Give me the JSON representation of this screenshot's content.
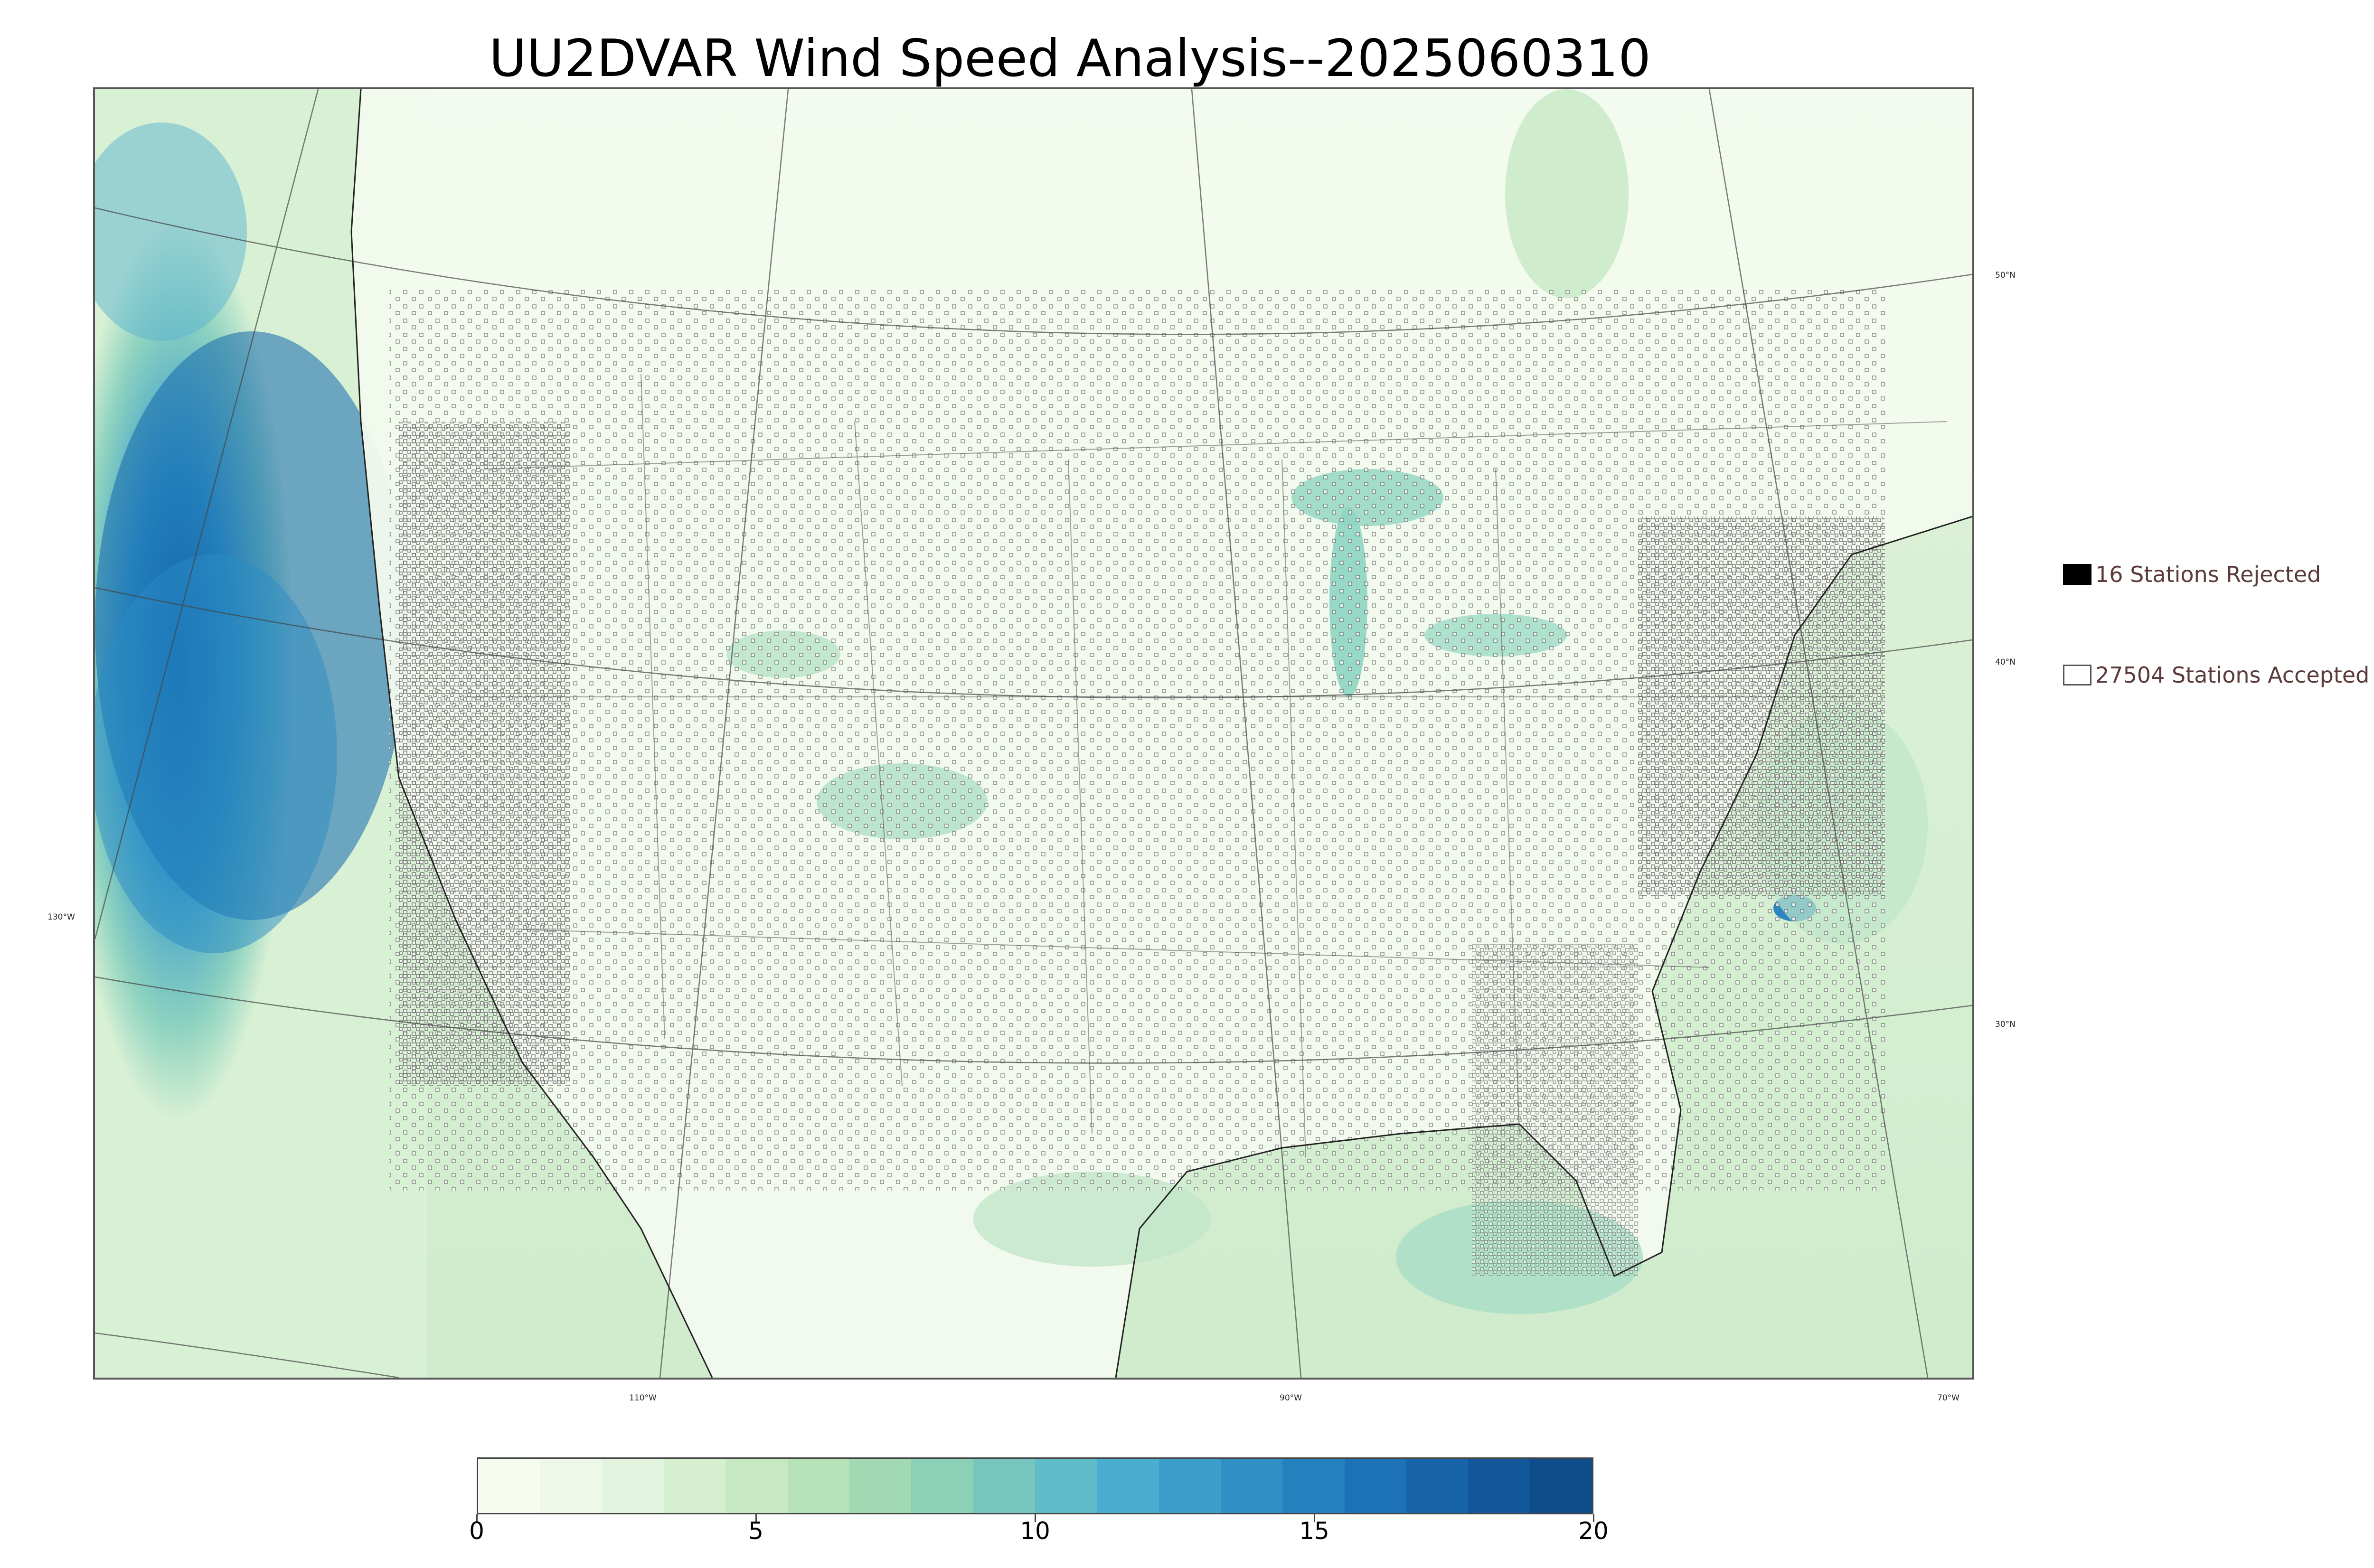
{
  "title": "UU2DVAR Wind Speed Analysis--2025060310",
  "map": {
    "lon_labels": [
      "130°W",
      "110°W",
      "90°W",
      "70°W"
    ],
    "lat_labels": [
      "50°N",
      "40°N",
      "30°N"
    ],
    "land_color": "#f2f9ee",
    "ocean_colors": [
      "#1a73b8",
      "#5bb8d6",
      "#bfe6c2",
      "#e9f6e4"
    ],
    "station_marker_color": "#555555"
  },
  "legend": {
    "rejected": {
      "count_label": "16 Stations Rejected",
      "swatch_color": "#000000"
    },
    "accepted": {
      "count_label": "27504 Stations Accepted",
      "swatch_color": "#ffffff"
    }
  },
  "colorbar": {
    "min": 0,
    "max": 20,
    "ticks": [
      "0",
      "5",
      "10",
      "15",
      "20"
    ],
    "colors": [
      "#f7fcf0",
      "#eef8e9",
      "#e2f4dd",
      "#d5efcf",
      "#c6e9c1",
      "#b5e2b6",
      "#a1d9b3",
      "#8dd0b8",
      "#76c6bf",
      "#5fbcc8",
      "#4aaed0",
      "#3c9fcb",
      "#3090c5",
      "#2581bd",
      "#1c72b4",
      "#1764a8",
      "#125799",
      "#0f4c8a"
    ]
  }
}
